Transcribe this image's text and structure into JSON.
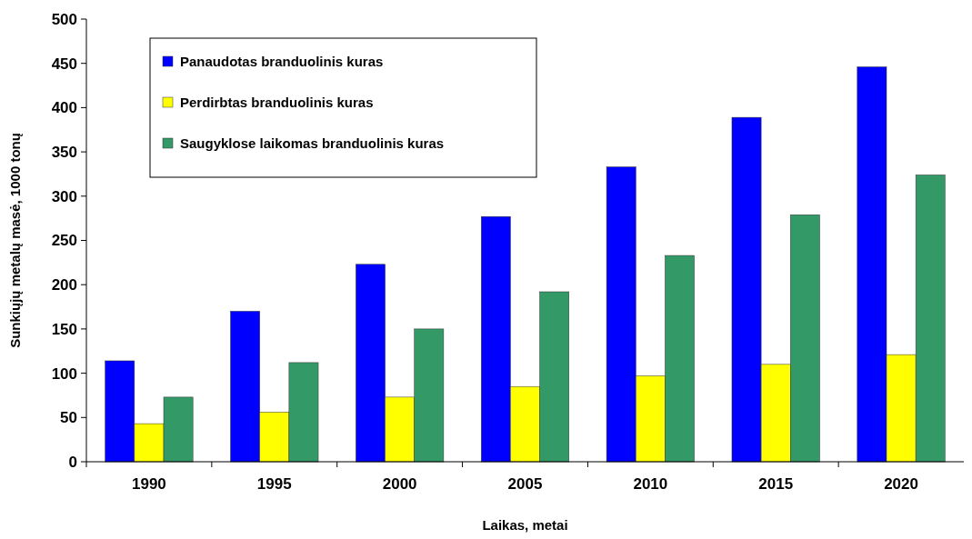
{
  "chart_data": {
    "type": "bar",
    "xlabel": "Laikas, metai",
    "ylabel": "Sunkiųjų metalų masė, 1000 tonų",
    "categories": [
      "1990",
      "1995",
      "2000",
      "2005",
      "2010",
      "2015",
      "2020"
    ],
    "series": [
      {
        "name": "Panaudotas branduolinis kuras",
        "color": "#0000ff",
        "values": [
          114,
          170,
          223,
          277,
          333,
          389,
          446
        ]
      },
      {
        "name": "Perdirbtas branduolinis kuras",
        "color": "#ffff00",
        "values": [
          43,
          56,
          73,
          85,
          97,
          110,
          121
        ]
      },
      {
        "name": "Saugyklose laikomas branduolinis kuras",
        "color": "#339966",
        "values": [
          73,
          112,
          150,
          192,
          233,
          279,
          324
        ]
      }
    ],
    "ylim": [
      0,
      500
    ],
    "yticks": [
      0,
      50,
      100,
      150,
      200,
      250,
      300,
      350,
      400,
      450,
      500
    ],
    "grid": false,
    "legend": "top left"
  }
}
